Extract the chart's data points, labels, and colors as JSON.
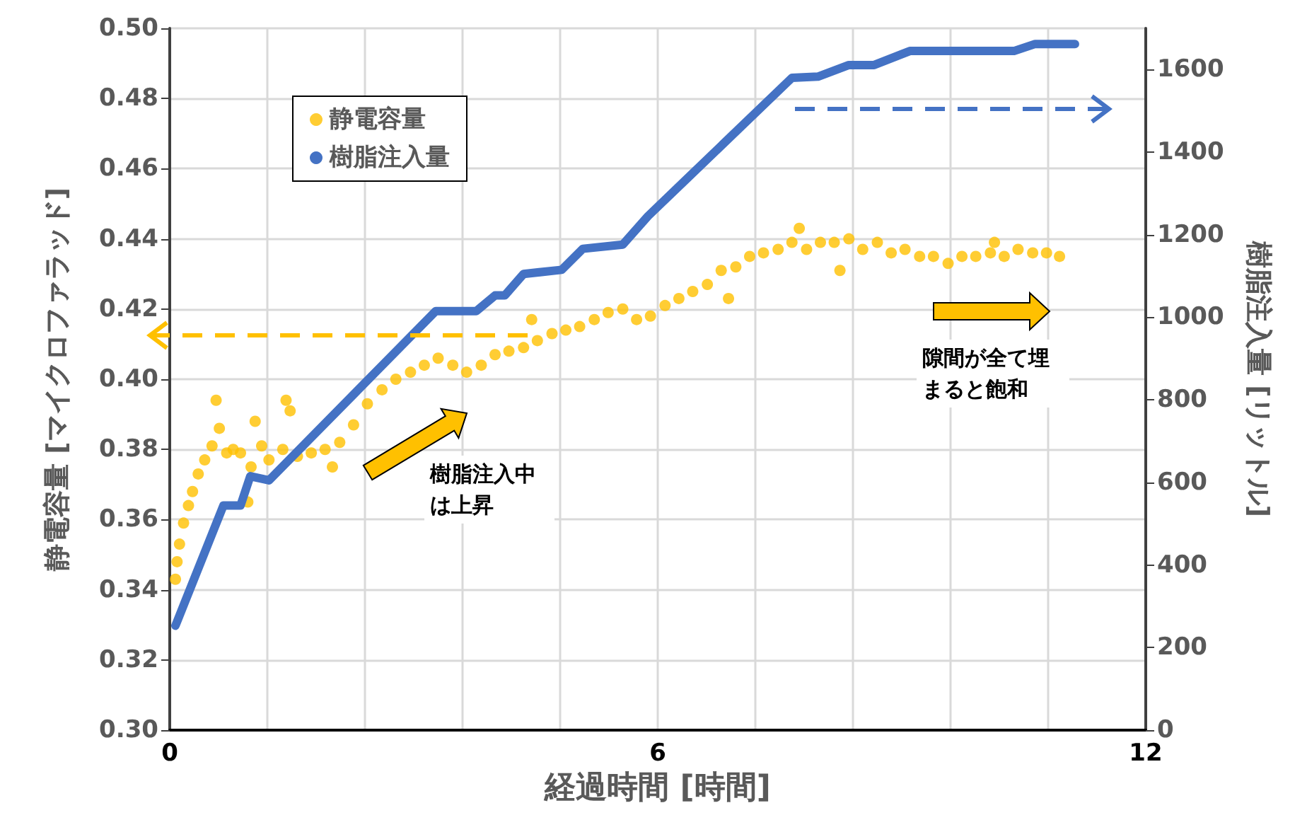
{
  "chart_data": {
    "type": "scatter",
    "xlabel": "経過時間 [時間]",
    "ylabel": "静電容量 [マイクロファラッド]",
    "y2label": "樹脂注入量 [リットル]",
    "annotations": [
      "樹脂注入中は上昇",
      "隙間が全て埋まると飽和"
    ],
    "series": [
      {
        "name": "静電容量",
        "marker": "circle",
        "color": "#ffc000",
        "x": [
          0.07,
          0.09,
          0.12,
          0.17,
          0.23,
          0.28,
          0.35,
          0.43,
          0.52,
          0.57,
          0.61,
          0.7,
          0.78,
          0.87,
          0.96,
          1.0,
          1.05,
          1.13,
          1.22,
          1.39,
          1.43,
          1.48,
          1.57,
          1.74,
          1.91,
          2.0,
          2.09,
          2.26,
          2.43,
          2.61,
          2.78,
          2.96,
          3.13,
          3.3,
          3.48,
          3.65,
          3.83,
          4.0,
          4.17,
          4.35,
          4.45,
          4.52,
          4.7,
          4.87,
          5.04,
          5.22,
          5.39,
          5.57,
          5.74,
          5.91,
          6.09,
          6.26,
          6.43,
          6.61,
          6.78,
          6.87,
          6.96,
          7.13,
          7.3,
          7.48,
          7.65,
          7.74,
          7.83,
          8.0,
          8.17,
          8.24,
          8.35,
          8.52,
          8.7,
          8.87,
          9.04,
          9.22,
          9.39,
          9.57,
          9.74,
          9.91,
          10.09,
          10.14,
          10.26,
          10.43,
          10.61,
          10.78,
          10.94
        ],
        "values": [
          0.343,
          0.348,
          0.353,
          0.359,
          0.364,
          0.368,
          0.373,
          0.377,
          0.381,
          0.394,
          0.386,
          0.379,
          0.38,
          0.379,
          0.365,
          0.375,
          0.388,
          0.381,
          0.377,
          0.38,
          0.394,
          0.391,
          0.378,
          0.379,
          0.38,
          0.375,
          0.382,
          0.387,
          0.393,
          0.397,
          0.4,
          0.402,
          0.404,
          0.406,
          0.404,
          0.402,
          0.404,
          0.407,
          0.408,
          0.409,
          0.417,
          0.411,
          0.413,
          0.414,
          0.415,
          0.417,
          0.419,
          0.42,
          0.417,
          0.418,
          0.421,
          0.423,
          0.425,
          0.427,
          0.431,
          0.423,
          0.432,
          0.435,
          0.436,
          0.437,
          0.439,
          0.443,
          0.437,
          0.439,
          0.439,
          0.431,
          0.44,
          0.437,
          0.439,
          0.436,
          0.437,
          0.435,
          0.435,
          0.433,
          0.435,
          0.435,
          0.436,
          0.439,
          0.435,
          0.437,
          0.436,
          0.436,
          0.435
        ]
      },
      {
        "name": "樹脂注入量",
        "type": "line",
        "marker": "none",
        "axis": "y2",
        "color": "#4472c4",
        "x": [
          0.07,
          0.66,
          0.87,
          0.99,
          1.22,
          3.27,
          3.77,
          4.0,
          4.12,
          4.35,
          4.82,
          5.08,
          5.57,
          5.88,
          7.65,
          7.97,
          8.35,
          8.66,
          9.1,
          10.38,
          10.64,
          11.13
        ],
        "values": [
          253,
          544,
          544,
          615,
          605,
          1015,
          1015,
          1053,
          1053,
          1105,
          1115,
          1166,
          1176,
          1245,
          1580,
          1583,
          1611,
          1611,
          1645,
          1645,
          1662,
          1662
        ]
      }
    ],
    "xlim": [
      0,
      12
    ],
    "xticks": [
      0,
      {
        "value": 1.2,
        "label": null
      },
      {
        "value": 2.4,
        "label": null
      },
      {
        "value": 3.6,
        "label": null
      },
      {
        "value": 4.8,
        "label": null
      },
      6,
      {
        "value": 7.2,
        "label": null
      },
      {
        "value": 8.4,
        "label": null
      },
      {
        "value": 9.6,
        "label": null
      },
      {
        "value": 10.8,
        "label": null
      },
      12
    ],
    "ylim": [
      0.3,
      0.5
    ],
    "yticks": [
      {
        "value": 0.3,
        "label": "0.30"
      },
      {
        "value": 0.32,
        "label": "0.32"
      },
      {
        "value": 0.34,
        "label": "0.34"
      },
      {
        "value": 0.36,
        "label": "0.36"
      },
      {
        "value": 0.38,
        "label": "0.38"
      },
      {
        "value": 0.4,
        "label": "0.40"
      },
      {
        "value": 0.42,
        "label": "0.42"
      },
      {
        "value": 0.44,
        "label": "0.44"
      },
      {
        "value": 0.46,
        "label": "0.46"
      },
      {
        "value": 0.48,
        "label": "0.48"
      },
      {
        "value": 0.5,
        "label": "0.50"
      }
    ],
    "y2lim": [
      0,
      1700
    ],
    "y2ticks": [
      0,
      200,
      400,
      600,
      800,
      1000,
      1200,
      1400,
      1600
    ],
    "grid": true,
    "legend": "top left"
  }
}
